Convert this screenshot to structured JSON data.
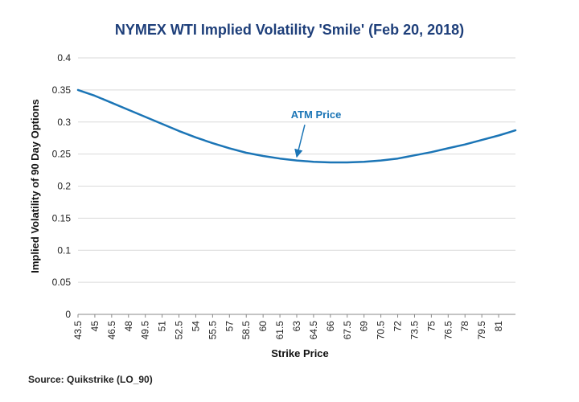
{
  "colors": {
    "title": "#1e3f7a",
    "series": "#1b75b6",
    "annotation": "#1b75b6",
    "grid": "#d9d9d9",
    "axis": "#888888"
  },
  "chart_data": {
    "type": "line",
    "title": "NYMEX WTI Implied Volatility 'Smile' (Feb 20, 2018)",
    "xlabel": "Strike Price",
    "ylabel": "Implied Volatility of 90 Day Options",
    "ylim": [
      0,
      0.4
    ],
    "yticks": [
      "0",
      "0.05",
      "0.1",
      "0.15",
      "0.2",
      "0.25",
      "0.3",
      "0.35",
      "0.4"
    ],
    "xticks": [
      "43.5",
      "45",
      "46.5",
      "48",
      "49.5",
      "51",
      "52.5",
      "54",
      "55.5",
      "57",
      "58.5",
      "60",
      "61.5",
      "63",
      "64.5",
      "66",
      "67.5",
      "69",
      "70.5",
      "72",
      "73.5",
      "75",
      "76.5",
      "78",
      "79.5",
      "81"
    ],
    "xlim": [
      43.5,
      82.5
    ],
    "grid": true,
    "legend": "none",
    "series": [
      {
        "x": [
          43.5,
          45,
          46.5,
          48,
          49.5,
          51,
          52.5,
          54,
          55.5,
          57,
          58.5,
          60,
          61.5,
          63,
          64.5,
          66,
          67.5,
          69,
          70.5,
          72,
          73.5,
          75,
          76.5,
          78,
          79.5,
          81,
          82.5
        ],
        "values": [
          0.35,
          0.341,
          0.33,
          0.319,
          0.308,
          0.297,
          0.286,
          0.276,
          0.267,
          0.259,
          0.252,
          0.247,
          0.243,
          0.24,
          0.238,
          0.237,
          0.237,
          0.238,
          0.24,
          0.243,
          0.248,
          0.253,
          0.259,
          0.265,
          0.272,
          0.279,
          0.287
        ]
      }
    ],
    "annotations": [
      {
        "text": "ATM Price",
        "x": 63,
        "y": 0.2405
      }
    ]
  },
  "source": "Source: Quikstrike (LO_90)"
}
